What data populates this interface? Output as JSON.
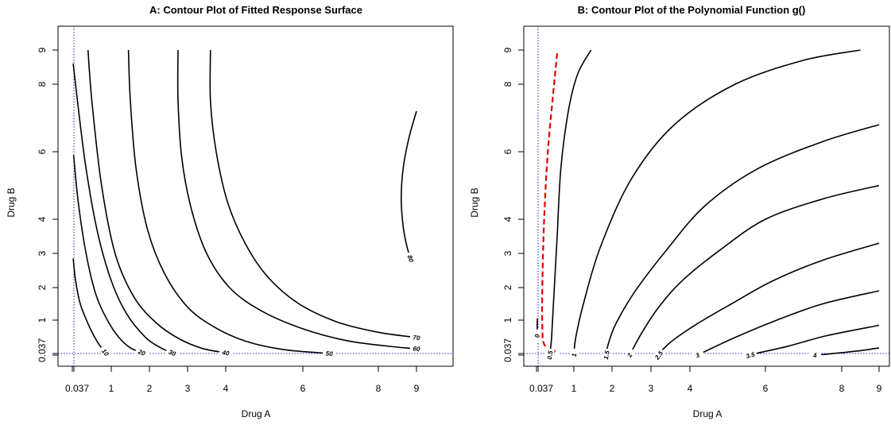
{
  "chart_data": [
    {
      "type": "contour",
      "title": "A: Contour Plot of Fitted Response Surface",
      "xlabel": "Drug A",
      "ylabel": "Drug B",
      "x_ticks": [
        "0.037",
        "1",
        "2",
        "3",
        "4",
        "6",
        "8",
        "9"
      ],
      "y_ticks": [
        "0.037",
        "1",
        "2",
        "3",
        "4",
        "6",
        "8",
        "9"
      ],
      "reference_lines": {
        "x": 0.037,
        "y": 0.037,
        "style": "dotted",
        "color": "#2222cc"
      },
      "levels": [
        {
          "label": "10",
          "points": [
            [
              0.02,
              2.85
            ],
            [
              0.08,
              2.2
            ],
            [
              0.2,
              1.5
            ],
            [
              0.4,
              0.9
            ],
            [
              0.6,
              0.45
            ],
            [
              0.75,
              0.2
            ],
            [
              0.85,
              0.07
            ]
          ]
        },
        {
          "label": "20",
          "points": [
            [
              0.03,
              5.9
            ],
            [
              0.15,
              4.5
            ],
            [
              0.35,
              3.0
            ],
            [
              0.6,
              1.8
            ],
            [
              0.9,
              1.0
            ],
            [
              1.2,
              0.5
            ],
            [
              1.5,
              0.2
            ],
            [
              1.8,
              0.07
            ]
          ]
        },
        {
          "label": "30",
          "points": [
            [
              0.02,
              8.6
            ],
            [
              0.15,
              7.3
            ],
            [
              0.35,
              5.5
            ],
            [
              0.65,
              3.6
            ],
            [
              1.0,
              2.2
            ],
            [
              1.4,
              1.2
            ],
            [
              1.9,
              0.5
            ],
            [
              2.3,
              0.2
            ],
            [
              2.6,
              0.06
            ]
          ]
        },
        {
          "label": "40",
          "points": [
            [
              0.4,
              9.0
            ],
            [
              0.5,
              7.5
            ],
            [
              0.75,
              5.0
            ],
            [
              1.1,
              3.0
            ],
            [
              1.6,
              1.7
            ],
            [
              2.2,
              0.9
            ],
            [
              2.8,
              0.45
            ],
            [
              3.4,
              0.18
            ],
            [
              4.0,
              0.06
            ]
          ]
        },
        {
          "label": "50",
          "points": [
            [
              1.45,
              9.0
            ],
            [
              1.5,
              7.5
            ],
            [
              1.65,
              5.5
            ],
            [
              1.95,
              3.7
            ],
            [
              2.4,
              2.4
            ],
            [
              3.0,
              1.4
            ],
            [
              3.7,
              0.8
            ],
            [
              4.5,
              0.4
            ],
            [
              5.5,
              0.15
            ],
            [
              6.7,
              0.04
            ]
          ]
        },
        {
          "label": "60",
          "points": [
            [
              2.75,
              9.0
            ],
            [
              2.75,
              7.5
            ],
            [
              2.85,
              5.8
            ],
            [
              3.1,
              4.3
            ],
            [
              3.5,
              3.0
            ],
            [
              4.1,
              2.0
            ],
            [
              4.9,
              1.3
            ],
            [
              6.0,
              0.75
            ],
            [
              7.2,
              0.4
            ],
            [
              8.5,
              0.22
            ],
            [
              9.0,
              0.18
            ]
          ]
        },
        {
          "label": "70",
          "points": [
            [
              3.6,
              9.0
            ],
            [
              3.6,
              7.5
            ],
            [
              3.75,
              6.0
            ],
            [
              4.05,
              4.5
            ],
            [
              4.5,
              3.3
            ],
            [
              5.1,
              2.3
            ],
            [
              5.9,
              1.5
            ],
            [
              6.9,
              0.95
            ],
            [
              8.0,
              0.65
            ],
            [
              9.0,
              0.5
            ]
          ]
        },
        {
          "label": "80",
          "points": [
            [
              9.0,
              7.2
            ],
            [
              8.8,
              6.4
            ],
            [
              8.65,
              5.5
            ],
            [
              8.6,
              4.6
            ],
            [
              8.65,
              3.8
            ],
            [
              8.75,
              3.2
            ],
            [
              8.85,
              2.85
            ]
          ]
        }
      ]
    },
    {
      "type": "contour",
      "title": "B: Contour Plot of the Polynomial Function g()",
      "xlabel": "Drug A",
      "ylabel": "Drug B",
      "x_ticks": [
        "0.037",
        "1",
        "2",
        "3",
        "4",
        "6",
        "8",
        "9"
      ],
      "y_ticks": [
        "0.037",
        "1",
        "2",
        "3",
        "4",
        "6",
        "8",
        "9"
      ],
      "reference_lines": {
        "x": 0.037,
        "y": 0.037,
        "style": "dotted",
        "color": "#2222cc"
      },
      "levels": [
        {
          "label": "0",
          "color": "#e00000",
          "dashed": true,
          "points": [
            [
              0.55,
              8.9
            ],
            [
              0.45,
              7.8
            ],
            [
              0.3,
              6.0
            ],
            [
              0.2,
              4.0
            ],
            [
              0.15,
              2.0
            ],
            [
              0.15,
              0.8
            ],
            [
              0.2,
              0.3
            ],
            [
              0.45,
              0.1
            ]
          ]
        },
        {
          "label": "0",
          "points": [
            [
              0.02,
              1.05
            ],
            [
              0.015,
              0.75
            ],
            [
              0.02,
              0.55
            ]
          ]
        },
        {
          "label": "0.5",
          "points": [
            [
              1.45,
              9.0
            ],
            [
              1.1,
              8.3
            ],
            [
              0.85,
              7.2
            ],
            [
              0.65,
              5.5
            ],
            [
              0.55,
              3.5
            ],
            [
              0.45,
              1.5
            ],
            [
              0.4,
              0.5
            ],
            [
              0.35,
              0.0
            ]
          ]
        },
        {
          "label": "1",
          "points": [
            [
              8.5,
              9.0
            ],
            [
              7.0,
              8.7
            ],
            [
              5.2,
              8.0
            ],
            [
              3.6,
              6.8
            ],
            [
              2.5,
              5.2
            ],
            [
              1.7,
              3.2
            ],
            [
              1.25,
              1.5
            ],
            [
              1.05,
              0.5
            ],
            [
              1.0,
              0.0
            ]
          ]
        },
        {
          "label": "1.5",
          "points": [
            [
              9.0,
              6.8
            ],
            [
              7.5,
              6.3
            ],
            [
              5.8,
              5.5
            ],
            [
              4.4,
              4.4
            ],
            [
              3.4,
              3.1
            ],
            [
              2.6,
              1.9
            ],
            [
              2.1,
              0.9
            ],
            [
              1.9,
              0.3
            ],
            [
              1.85,
              0.0
            ]
          ]
        },
        {
          "label": "2",
          "points": [
            [
              9.0,
              5.0
            ],
            [
              7.5,
              4.6
            ],
            [
              6.0,
              4.0
            ],
            [
              4.8,
              3.1
            ],
            [
              3.8,
              2.2
            ],
            [
              3.2,
              1.4
            ],
            [
              2.8,
              0.7
            ],
            [
              2.55,
              0.2
            ],
            [
              2.45,
              0.0
            ]
          ]
        },
        {
          "label": "2.5",
          "points": [
            [
              9.0,
              3.3
            ],
            [
              7.5,
              2.8
            ],
            [
              6.2,
              2.2
            ],
            [
              5.1,
              1.5
            ],
            [
              4.2,
              0.9
            ],
            [
              3.6,
              0.45
            ],
            [
              3.3,
              0.15
            ],
            [
              3.2,
              0.0
            ]
          ]
        },
        {
          "label": "3",
          "points": [
            [
              9.0,
              1.9
            ],
            [
              7.5,
              1.5
            ],
            [
              6.3,
              1.0
            ],
            [
              5.3,
              0.55
            ],
            [
              4.6,
              0.2
            ],
            [
              4.2,
              0.0
            ]
          ]
        },
        {
          "label": "3.5",
          "points": [
            [
              9.0,
              0.85
            ],
            [
              7.6,
              0.55
            ],
            [
              6.6,
              0.25
            ],
            [
              5.8,
              0.05
            ],
            [
              5.6,
              0.0
            ]
          ]
        },
        {
          "label": "4",
          "points": [
            [
              9.0,
              0.2
            ],
            [
              8.5,
              0.12
            ],
            [
              7.7,
              0.03
            ],
            [
              7.3,
              0.0
            ]
          ]
        }
      ]
    }
  ]
}
